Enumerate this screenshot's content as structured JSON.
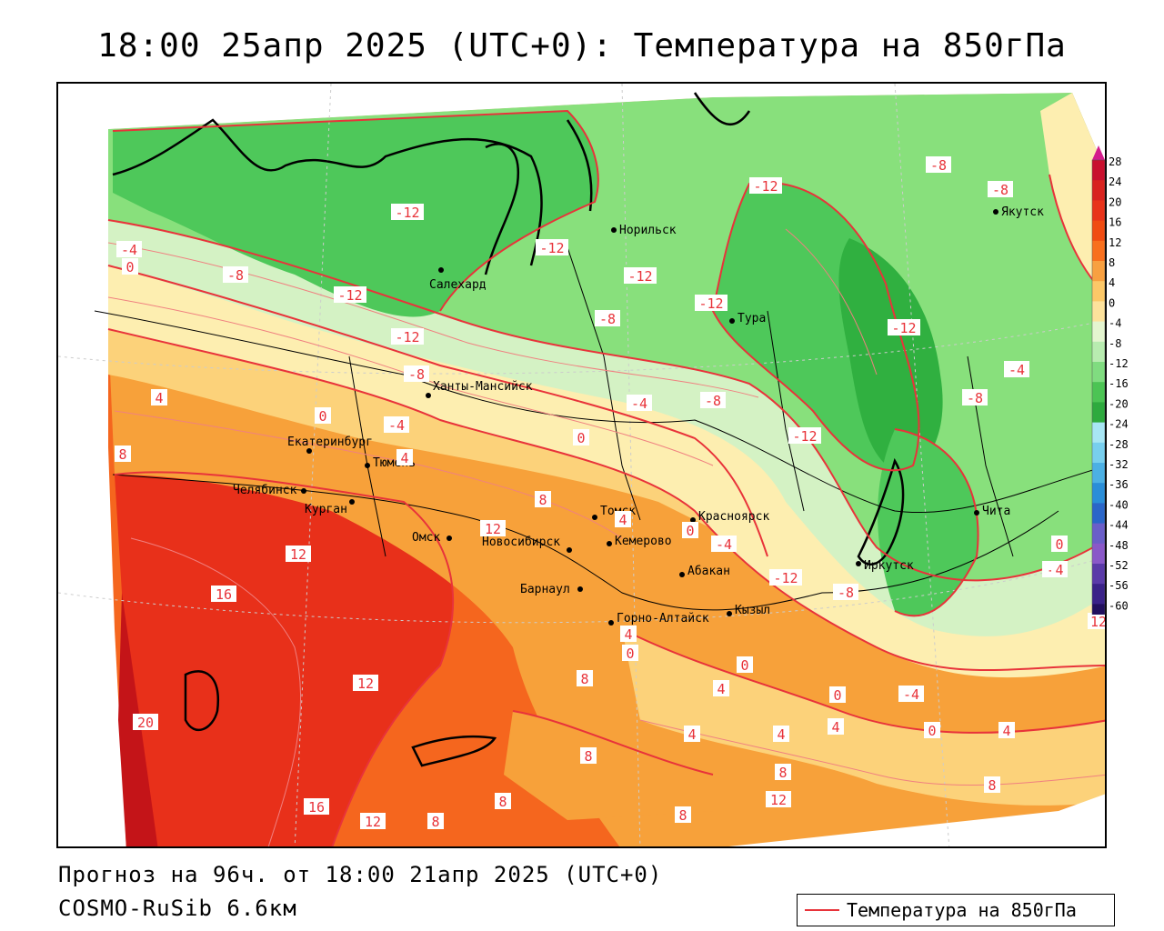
{
  "title": "18:00 25апр 2025 (UTC+0): Температура на 850гПа",
  "forecast_text": "Прогноз на 96ч. от 18:00 21апр 2025 (UTC+0)",
  "model_text": "COSMO-RuSib 6.6км",
  "legend": {
    "label": "Температура на 850гПа",
    "line_color": "#e8333a"
  },
  "colorbar": {
    "labels": [
      "28",
      "24",
      "20",
      "16",
      "12",
      "8",
      "4",
      "0",
      "-4",
      "-8",
      "-12",
      "-16",
      "-20",
      "-24",
      "-28",
      "-32",
      "-36",
      "-40",
      "-44",
      "-48",
      "-52",
      "-56",
      "-60"
    ],
    "colors": [
      "#c8102e",
      "#d8231f",
      "#e8331a",
      "#f04c12",
      "#f8701e",
      "#f8a040",
      "#fcc868",
      "#fde29c",
      "#e4f5d0",
      "#b8ecb0",
      "#80dc80",
      "#4cc454",
      "#2eaa3e",
      "#a8e6f4",
      "#78cfee",
      "#4cb0e4",
      "#2a8ed8",
      "#2a66c8",
      "#6a5ec8",
      "#8a58c8",
      "#5a3aa8",
      "#3a2288",
      "#22105e"
    ],
    "top_arrow_color": "#d41c8c"
  },
  "palette": {
    "hot_dark": "#c41418",
    "hot": "#e8301a",
    "warm": "#f5661e",
    "orange": "#f7a13a",
    "yellow": "#fcd27a",
    "pale_yellow": "#fdeeb0",
    "pale_green": "#d4f2c4",
    "light_green": "#88e07c",
    "green": "#4ec85a",
    "dark_green": "#30b040",
    "isoline": "#e8333a"
  },
  "cities": [
    {
      "name": "Норильск"
    },
    {
      "name": "Якутск"
    },
    {
      "name": "Салехард"
    },
    {
      "name": "Тура"
    },
    {
      "name": "Ханты-Мансийск"
    },
    {
      "name": "Екатеринбург"
    },
    {
      "name": "Тюмень"
    },
    {
      "name": "Челябинск"
    },
    {
      "name": "Курган"
    },
    {
      "name": "Омск"
    },
    {
      "name": "Новосибирск"
    },
    {
      "name": "Томск"
    },
    {
      "name": "Кемерово"
    },
    {
      "name": "Красноярск"
    },
    {
      "name": "Абакан"
    },
    {
      "name": "Барнаул"
    },
    {
      "name": "Горно-Алтайск"
    },
    {
      "name": "Кызыл"
    },
    {
      "name": "Иркутск"
    },
    {
      "name": "Чита"
    }
  ],
  "isolines": [
    {
      "value": "-12"
    },
    {
      "value": "-12"
    },
    {
      "value": "-12"
    },
    {
      "value": "-12"
    },
    {
      "value": "-12"
    },
    {
      "value": "-12"
    },
    {
      "value": "-12"
    },
    {
      "value": "-12"
    },
    {
      "value": "-12"
    },
    {
      "value": "-12"
    },
    {
      "value": "-8"
    },
    {
      "value": "-8"
    },
    {
      "value": "-8"
    },
    {
      "value": "-8"
    },
    {
      "value": "-8"
    },
    {
      "value": "-8"
    },
    {
      "value": "-8"
    },
    {
      "value": "-8"
    },
    {
      "value": "-4"
    },
    {
      "value": "-4"
    },
    {
      "value": "-4"
    },
    {
      "value": "-4"
    },
    {
      "value": "-4"
    },
    {
      "value": "-4"
    },
    {
      "value": "-4"
    },
    {
      "value": "0"
    },
    {
      "value": "0"
    },
    {
      "value": "0"
    },
    {
      "value": "0"
    },
    {
      "value": "0"
    },
    {
      "value": "0"
    },
    {
      "value": "0"
    },
    {
      "value": "0"
    },
    {
      "value": "0"
    },
    {
      "value": "4"
    },
    {
      "value": "4"
    },
    {
      "value": "4"
    },
    {
      "value": "4"
    },
    {
      "value": "4"
    },
    {
      "value": "4"
    },
    {
      "value": "4"
    },
    {
      "value": "4"
    },
    {
      "value": "4"
    },
    {
      "value": "4"
    },
    {
      "value": "8"
    },
    {
      "value": "8"
    },
    {
      "value": "8"
    },
    {
      "value": "8"
    },
    {
      "value": "8"
    },
    {
      "value": "8"
    },
    {
      "value": "8"
    },
    {
      "value": "8"
    },
    {
      "value": "8"
    },
    {
      "value": "12"
    },
    {
      "value": "12"
    },
    {
      "value": "12"
    },
    {
      "value": "12"
    },
    {
      "value": "12"
    },
    {
      "value": "12"
    },
    {
      "value": "16"
    },
    {
      "value": "16"
    },
    {
      "value": "20"
    }
  ]
}
